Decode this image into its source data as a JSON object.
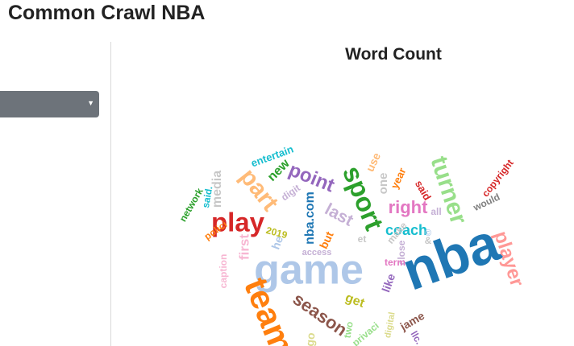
{
  "app": {
    "title": "Common Crawl NBA"
  },
  "sidebar": {
    "dropdown": {
      "selected": "",
      "icon": "caret-down-icon"
    }
  },
  "chart_data": {
    "type": "word-cloud",
    "title": "Word Count",
    "words": [
      {
        "text": "nba",
        "color": "#1f77b4"
      },
      {
        "text": "game",
        "color": "#aec7e8"
      },
      {
        "text": "team",
        "color": "#ff7f0e"
      },
      {
        "text": "play",
        "color": "#d62728"
      },
      {
        "text": "sport",
        "color": "#2ca02c"
      },
      {
        "text": "part",
        "color": "#ffbb78"
      },
      {
        "text": "turner",
        "color": "#98df8a"
      },
      {
        "text": "point",
        "color": "#9467bd"
      },
      {
        "text": "player",
        "color": "#ff9896"
      },
      {
        "text": "season",
        "color": "#8c564b"
      },
      {
        "text": "right",
        "color": "#e377c2"
      },
      {
        "text": "last",
        "color": "#c5b0d5"
      },
      {
        "text": "coach",
        "color": "#17becf"
      },
      {
        "text": "nba.com",
        "color": "#1f77b4"
      },
      {
        "text": "media",
        "color": "#c7c7c7"
      },
      {
        "text": "first",
        "color": "#f7b6d2"
      },
      {
        "text": "get",
        "color": "#bcbd22"
      },
      {
        "text": "one",
        "color": "#c7c7c7"
      },
      {
        "text": "new",
        "color": "#2ca02c"
      },
      {
        "text": "entertain",
        "color": "#17becf"
      },
      {
        "text": "copyright",
        "color": "#d62728"
      },
      {
        "text": "would",
        "color": "#7f7f7f"
      },
      {
        "text": "use",
        "color": "#ffbb78"
      },
      {
        "text": "year",
        "color": "#ff7f0e"
      },
      {
        "text": "said",
        "color": "#d62728"
      },
      {
        "text": "all",
        "color": "#c5b0d5"
      },
      {
        "text": "make",
        "color": "#c7c7c7"
      },
      {
        "text": "close",
        "color": "#c5b0d5"
      },
      {
        "text": "like",
        "color": "#9467bd"
      },
      {
        "text": "term",
        "color": "#e377c2"
      },
      {
        "text": "jame",
        "color": "#8c564b"
      },
      {
        "text": "llc.",
        "color": "#9467bd"
      },
      {
        "text": "digit",
        "color": "#c5b0d5"
      },
      {
        "text": "digital",
        "color": "#dbdb8d"
      },
      {
        "text": "privaci",
        "color": "#98df8a"
      },
      {
        "text": "two",
        "color": "#98df8a"
      },
      {
        "text": "go",
        "color": "#dbdb8d"
      },
      {
        "text": "access",
        "color": "#c5b0d5"
      },
      {
        "text": "caption",
        "color": "#f7b6d2"
      },
      {
        "text": "polici",
        "color": "#ff7f0e"
      },
      {
        "text": "network",
        "color": "#2ca02c"
      },
      {
        "text": "said.",
        "color": "#17becf"
      },
      {
        "text": "2019",
        "color": "#bcbd22"
      },
      {
        "text": "he",
        "color": "#aec7e8"
      },
      {
        "text": "but",
        "color": "#ff7f0e"
      },
      {
        "text": "et",
        "color": "#c7c7c7"
      },
      {
        "text": "&",
        "color": "#c7c7c7"
      },
      {
        "text": "©",
        "color": "#aec7e8"
      }
    ]
  }
}
